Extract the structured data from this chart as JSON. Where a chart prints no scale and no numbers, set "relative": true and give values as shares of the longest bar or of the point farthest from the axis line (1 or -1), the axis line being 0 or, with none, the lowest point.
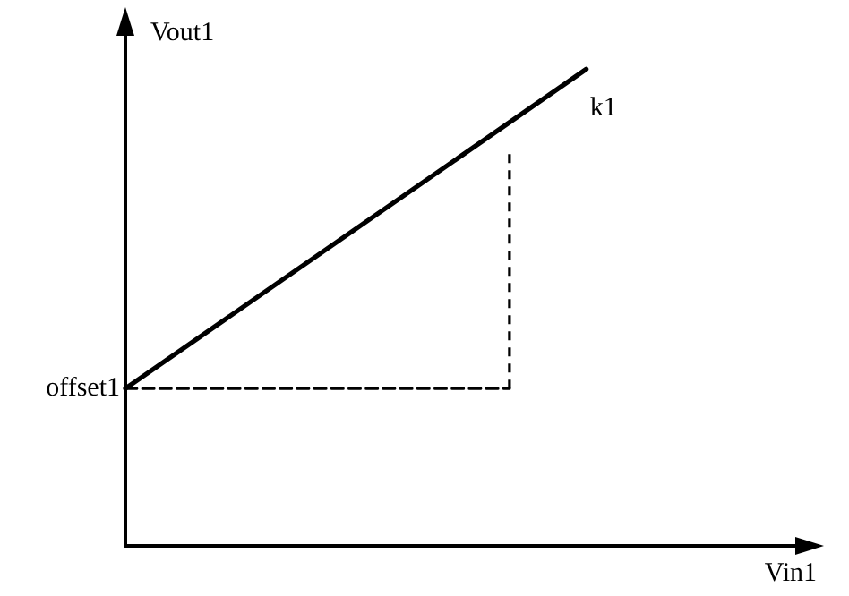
{
  "chart_data": {
    "type": "line",
    "xlabel": "Vin1",
    "ylabel": "Vout1",
    "relative": true,
    "marker": "none",
    "categories": [
      null,
      null,
      null,
      null,
      null,
      null,
      null,
      null,
      null,
      null,
      null,
      null,
      null,
      null,
      null,
      null,
      null,
      null,
      null
    ],
    "series": [
      {
        "color": "#000000",
        "values": [
          0.33,
          null,
          null,
          null,
          null,
          null,
          null,
          null,
          null,
          null,
          null,
          null,
          1,
          null,
          null,
          null,
          null,
          null,
          null
        ],
        "line_style": "solid"
      },
      {
        "color": "#000000",
        "values": [
          0.33,
          null,
          null,
          null,
          null,
          null,
          null,
          null,
          null,
          null,
          0.33,
          null,
          null,
          null,
          null,
          null,
          null,
          null,
          null
        ],
        "line_style": "dashed"
      }
    ],
    "annotations": [
      "offset1",
      "k1"
    ]
  }
}
